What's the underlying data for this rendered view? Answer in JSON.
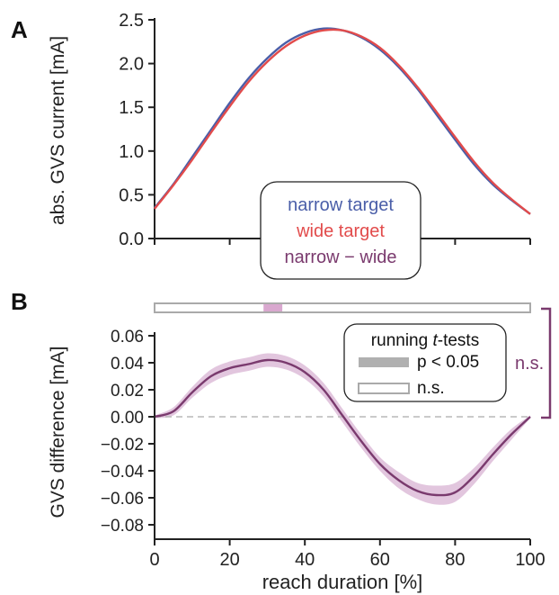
{
  "colors": {
    "narrow": "#4a5ea8",
    "wide": "#e24b4b",
    "diff": "#7a3a6e",
    "diff_band": "#e2c6de",
    "sig_fill": "#d9a8cf",
    "ns_box": "#aaaaaa",
    "legend_sig": "#b0b0b0",
    "zero_line": "#b8b8b8",
    "axis": "#222222"
  },
  "chart_data": [
    {
      "type": "line",
      "panel_label": "A",
      "ylabel": "abs. GVS current [mA]",
      "xlim": [
        0,
        100
      ],
      "ylim": [
        0,
        2.5
      ],
      "yticks": [
        "0.0",
        "0.5",
        "1.0",
        "1.5",
        "2.0",
        "2.5"
      ],
      "grid": false,
      "legend": {
        "position": "bottom-center",
        "entries": [
          "narrow target",
          "wide target",
          "narrow − wide"
        ]
      },
      "x": [
        0,
        5,
        10,
        15,
        20,
        25,
        30,
        35,
        40,
        45,
        50,
        55,
        60,
        65,
        70,
        75,
        80,
        85,
        90,
        95,
        100
      ],
      "series": [
        {
          "name": "narrow target",
          "values": [
            0.35,
            0.62,
            0.93,
            1.24,
            1.55,
            1.83,
            2.06,
            2.24,
            2.35,
            2.4,
            2.38,
            2.3,
            2.16,
            1.96,
            1.71,
            1.42,
            1.13,
            0.85,
            0.62,
            0.44,
            0.28
          ]
        },
        {
          "name": "wide target",
          "values": [
            0.34,
            0.61,
            0.9,
            1.21,
            1.51,
            1.79,
            2.02,
            2.2,
            2.32,
            2.38,
            2.38,
            2.31,
            2.18,
            1.98,
            1.73,
            1.45,
            1.16,
            0.88,
            0.64,
            0.45,
            0.28
          ]
        }
      ]
    },
    {
      "type": "line",
      "panel_label": "B",
      "ylabel": "GVS difference [mA]",
      "xlabel": "reach duration [%]",
      "xlim": [
        0,
        100
      ],
      "ylim": [
        -0.08,
        0.06
      ],
      "yticks": [
        "0.06",
        "0.04",
        "0.02",
        "0.00",
        "−0.02",
        "−0.04",
        "−0.06",
        "−0.08"
      ],
      "xticks": [
        "0",
        "20",
        "40",
        "60",
        "80",
        "100"
      ],
      "grid": false,
      "legend": {
        "position": "top-right",
        "title_prefix": "running ",
        "title_italic": "t",
        "title_suffix": "-tests",
        "entries": [
          "p < 0.05",
          "n.s."
        ]
      },
      "x": [
        0,
        5,
        10,
        15,
        20,
        25,
        30,
        35,
        40,
        45,
        50,
        55,
        60,
        65,
        70,
        75,
        80,
        85,
        90,
        95,
        100
      ],
      "series": [
        {
          "name": "narrow − wide",
          "values": [
            0.0,
            0.004,
            0.018,
            0.03,
            0.036,
            0.039,
            0.042,
            0.04,
            0.033,
            0.02,
            0.001,
            -0.018,
            -0.035,
            -0.047,
            -0.055,
            -0.058,
            -0.056,
            -0.044,
            -0.028,
            -0.013,
            0.0
          ]
        }
      ],
      "ci_halfwidth": [
        0.001,
        0.003,
        0.004,
        0.005,
        0.005,
        0.005,
        0.005,
        0.005,
        0.005,
        0.005,
        0.005,
        0.005,
        0.005,
        0.006,
        0.006,
        0.007,
        0.007,
        0.006,
        0.005,
        0.004,
        0.001
      ],
      "significant_ranges": [
        [
          29,
          34
        ]
      ],
      "bracket_label": "n.s."
    }
  ]
}
